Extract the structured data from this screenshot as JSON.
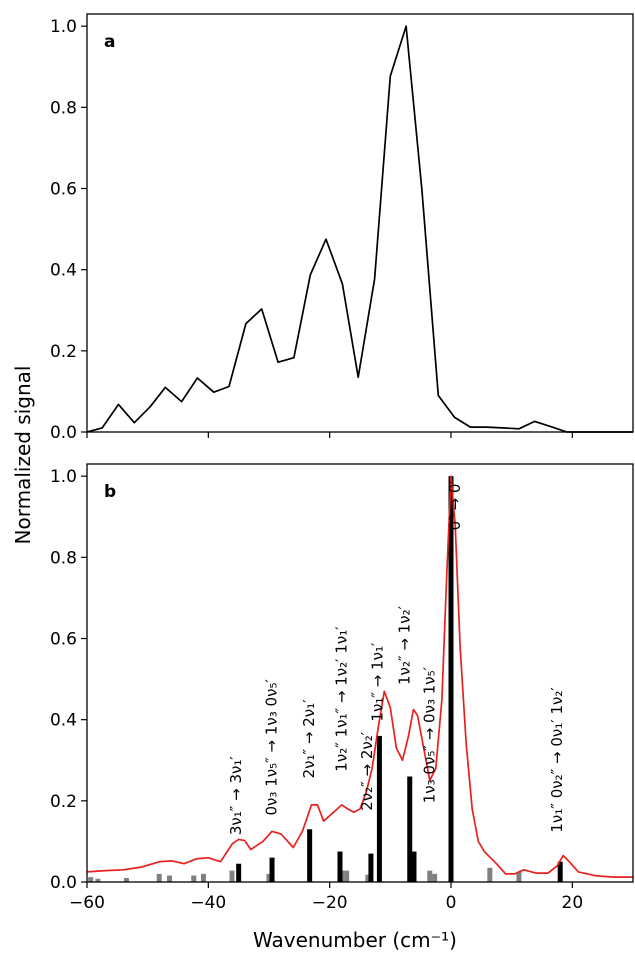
{
  "ylabel": "Normalized signal",
  "chart_data": [
    {
      "type": "line",
      "panel_label": "a",
      "xlabel": "",
      "ylabel": "Normalized signal",
      "xlim": [
        -60,
        30
      ],
      "ylim": [
        0,
        1.03
      ],
      "yticks": [
        0.0,
        0.2,
        0.4,
        0.6,
        0.8,
        1.0
      ],
      "ytick_labels": [
        "0.0",
        "0.2",
        "0.4",
        "0.6",
        "0.8",
        "1.0"
      ],
      "grid": false,
      "series": [
        {
          "color": "#000000",
          "x": [
            -60,
            -57.5,
            -54.8,
            -52.2,
            -49.6,
            -47.1,
            -44.4,
            -41.8,
            -39.1,
            -36.6,
            -33.8,
            -31.2,
            -28.5,
            -25.9,
            -23.2,
            -20.6,
            -17.9,
            -15.3,
            -12.6,
            -10.0,
            -7.4,
            -4.8,
            -2.1,
            0.6,
            3.2,
            5.8,
            8.5,
            11.2,
            13.8,
            16.5,
            19.1,
            21.8,
            24.5,
            27.2,
            30
          ]
        },
        {
          "y": [
            0.0,
            0.01,
            0.068,
            0.023,
            0.062,
            0.11,
            0.075,
            0.133,
            0.098,
            0.112,
            0.267,
            0.303,
            0.172,
            0.183,
            0.387,
            0.475,
            0.365,
            0.135,
            0.377,
            0.877,
            1.0,
            0.597,
            0.09,
            0.036,
            0.012,
            0.012,
            0.01,
            0.008,
            0.026,
            0.013,
            0.0,
            0.0,
            0.0,
            0.0,
            0.0
          ]
        }
      ]
    },
    {
      "type": "bar+line",
      "panel_label": "b",
      "xlabel": "Wavenumber (cm⁻¹)",
      "ylabel": "Normalized signal",
      "xlim": [
        -60,
        30
      ],
      "ylim": [
        0,
        1.03
      ],
      "xticks": [
        -60,
        -40,
        -20,
        0,
        20
      ],
      "xtick_labels": [
        "−60",
        "−40",
        "−20",
        "0",
        "20"
      ],
      "yticks": [
        0.0,
        0.2,
        0.4,
        0.6,
        0.8,
        1.0
      ],
      "ytick_labels": [
        "0.0",
        "0.2",
        "0.4",
        "0.6",
        "0.8",
        "1.0"
      ],
      "grid": false,
      "line": {
        "color": "#e8211e",
        "x": [
          -60,
          -57,
          -54,
          -51,
          -48,
          -46,
          -44,
          -42,
          -40,
          -38,
          -36,
          -35,
          -34,
          -33,
          -31,
          -29.5,
          -28,
          -26,
          -24.5,
          -23,
          -22,
          -21,
          -19.5,
          -18,
          -17,
          -16,
          -15,
          -14,
          -13,
          -12,
          -11,
          -10,
          -9,
          -8,
          -7,
          -6.2,
          -5.5,
          -4.5,
          -3.5,
          -2.5,
          -1.5,
          -0.7,
          0,
          0.7,
          1.5,
          2.5,
          3.5,
          4.5,
          5.5,
          6.5,
          7.5,
          9,
          10.5,
          12,
          14,
          16,
          17.5,
          18.5,
          19.5,
          21,
          24,
          27,
          30
        ],
        "y": [
          0.025,
          0.028,
          0.03,
          0.037,
          0.05,
          0.052,
          0.045,
          0.057,
          0.06,
          0.05,
          0.095,
          0.105,
          0.102,
          0.08,
          0.1,
          0.125,
          0.118,
          0.085,
          0.125,
          0.19,
          0.19,
          0.15,
          0.17,
          0.19,
          0.18,
          0.172,
          0.18,
          0.22,
          0.28,
          0.38,
          0.47,
          0.43,
          0.33,
          0.3,
          0.36,
          0.425,
          0.41,
          0.33,
          0.25,
          0.28,
          0.45,
          0.76,
          1.0,
          0.88,
          0.58,
          0.34,
          0.18,
          0.1,
          0.075,
          0.06,
          0.045,
          0.02,
          0.02,
          0.03,
          0.022,
          0.022,
          0.04,
          0.065,
          0.05,
          0.025,
          0.015,
          0.012,
          0.012
        ]
      },
      "bars_black": {
        "color": "#000000",
        "x": [
          -35,
          -29.5,
          -23.3,
          -18.3,
          -13.2,
          -11.8,
          -6.8,
          -6.1,
          0,
          18
        ],
        "values": [
          0.045,
          0.06,
          0.13,
          0.075,
          0.07,
          0.36,
          0.26,
          0.075,
          1.0,
          0.05
        ]
      },
      "bars_gray": {
        "color": "#808080",
        "x": [
          -59.4,
          -58.2,
          -53.5,
          -48.1,
          -46.4,
          -42.4,
          -40.8,
          -36.1,
          -30.0,
          -18.0,
          -17.2,
          -13.7,
          -3.5,
          -2.7,
          6.4,
          11.2
        ],
        "values": [
          0.012,
          0.008,
          0.01,
          0.02,
          0.016,
          0.016,
          0.02,
          0.028,
          0.02,
          0.028,
          0.028,
          0.018,
          0.028,
          0.02,
          0.035,
          0.025
        ]
      },
      "annotations": [
        {
          "text": "0″ → 0′",
          "x": 1.5,
          "y": 0.99
        },
        {
          "text": "1ν₁″ → 1ν₁′",
          "x": -11.3,
          "y": 0.59
        },
        {
          "text": "1ν₂″ → 1ν₂′",
          "x": -6.8,
          "y": 0.68
        },
        {
          "text": "1ν₃ 0ν₅″ → 0ν₃ 1ν₅′",
          "x": -2.7,
          "y": 0.53
        },
        {
          "text": "2ν₂″ → 2ν₂′",
          "x": -13.0,
          "y": 0.37
        },
        {
          "text": "1ν₂″ 1ν₁″ → 1ν₂′ 1ν₁′",
          "x": -17.2,
          "y": 0.63
        },
        {
          "text": "2ν₁″ → 2ν₁′",
          "x": -22.6,
          "y": 0.45
        },
        {
          "text": "0ν₃ 1ν₅″ → 1ν₃ 0ν₅′",
          "x": -28.8,
          "y": 0.5
        },
        {
          "text": "3ν₁″ → 3ν₁′",
          "x": -34.6,
          "y": 0.31
        },
        {
          "text": "1ν₁″ 0ν₂″ → 0ν₁′ 1ν₂′",
          "x": 18.3,
          "y": 0.48
        }
      ]
    }
  ]
}
